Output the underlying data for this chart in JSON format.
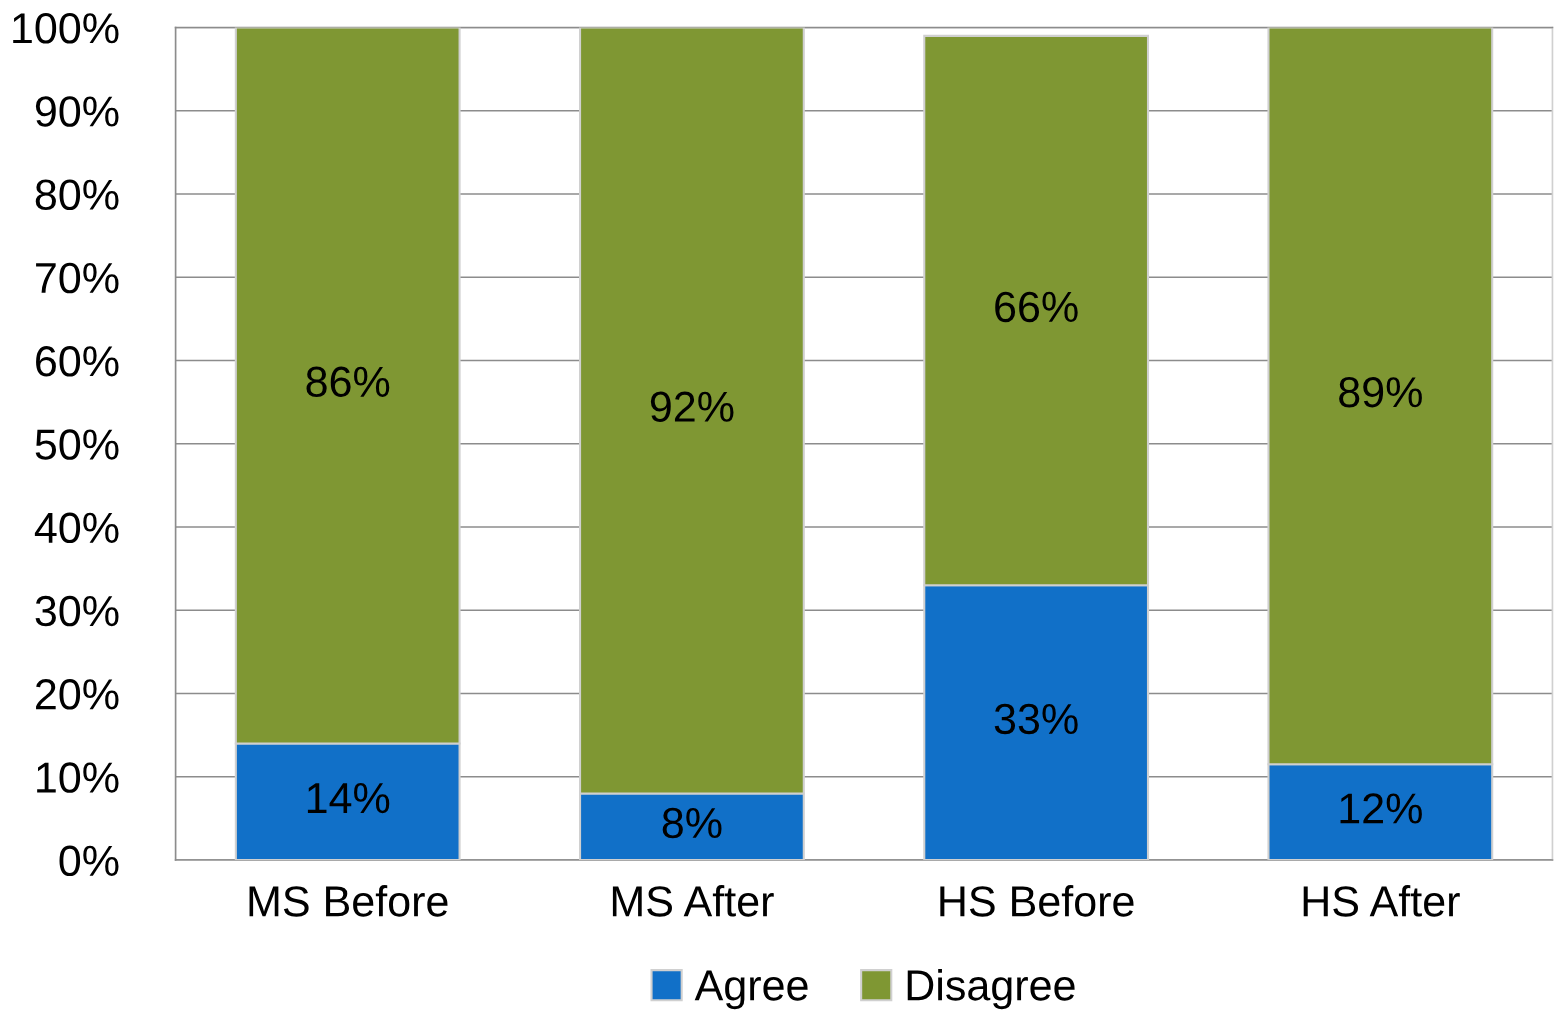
{
  "chart_data": {
    "type": "bar",
    "stacked": true,
    "categories": [
      "MS Before",
      "MS After",
      "HS Before",
      "HS After"
    ],
    "series": [
      {
        "name": "Agree",
        "color": "#1170c8",
        "values": [
          14,
          8,
          33,
          11.5
        ],
        "value_labels": [
          "14%",
          "8%",
          "33%",
          "12%"
        ]
      },
      {
        "name": "Disagree",
        "color": "#7f9733",
        "values": [
          86,
          92,
          66,
          88.5
        ],
        "value_labels": [
          "86%",
          "92%",
          "66%",
          "89%"
        ]
      }
    ],
    "ylim": [
      0,
      100
    ],
    "yticks": [
      {
        "value": 0,
        "label": "0%"
      },
      {
        "value": 10,
        "label": "10%"
      },
      {
        "value": 20,
        "label": "20%"
      },
      {
        "value": 30,
        "label": "30%"
      },
      {
        "value": 40,
        "label": "40%"
      },
      {
        "value": 50,
        "label": "50%"
      },
      {
        "value": 60,
        "label": "60%"
      },
      {
        "value": 70,
        "label": "70%"
      },
      {
        "value": 80,
        "label": "80%"
      },
      {
        "value": 90,
        "label": "90%"
      },
      {
        "value": 100,
        "label": "100%"
      }
    ],
    "grid": "y",
    "legend": "bottom"
  }
}
